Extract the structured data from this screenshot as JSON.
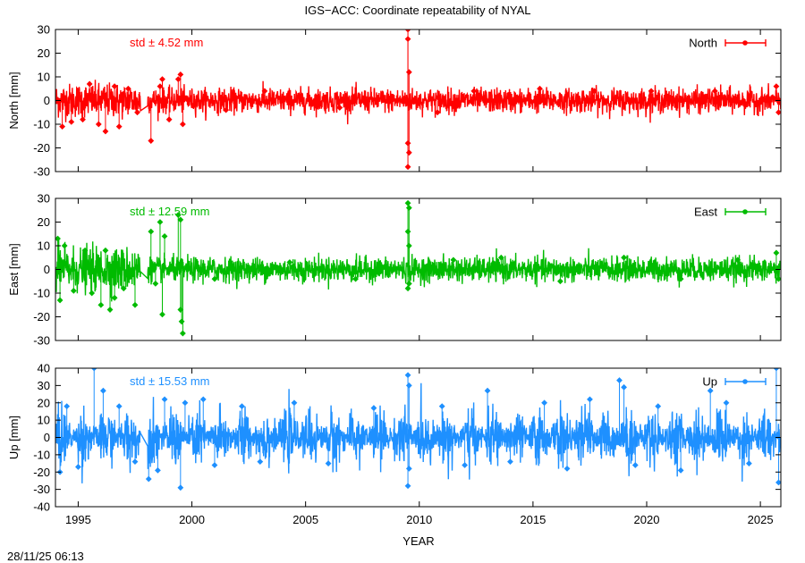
{
  "title": "IGS−ACC: Coordinate repeatability of NYAL",
  "timestamp": "28/11/25 06:13",
  "xlabel": "YEAR",
  "x_ticks": [
    1995,
    2000,
    2005,
    2010,
    2015,
    2020,
    2025
  ],
  "chart_data": [
    {
      "type": "scatter",
      "panel": "north",
      "ylabel": "North [mm]",
      "legend": "North",
      "legend_position": "top-right",
      "stat_label": "std ± 4.52 mm",
      "std": 4.52,
      "color": "#ff0000",
      "xlim": [
        1994.0,
        2025.9
      ],
      "ylim": [
        -30,
        30
      ],
      "y_ticks": [
        -30,
        -20,
        -10,
        0,
        10,
        20,
        30
      ],
      "grid": false,
      "baseline_noise": 2.5,
      "samples": [
        [
          1994.3,
          -11
        ],
        [
          1994.7,
          -9
        ],
        [
          1995.2,
          -8
        ],
        [
          1995.9,
          -10
        ],
        [
          1996.2,
          -13
        ],
        [
          1996.8,
          -11
        ],
        [
          1995.5,
          7
        ],
        [
          1996.6,
          6
        ],
        [
          1997.2,
          5
        ],
        [
          1997.6,
          -5
        ],
        [
          1998.2,
          -17
        ],
        [
          1998.6,
          6
        ],
        [
          1998.7,
          9
        ],
        [
          1999.0,
          -8
        ],
        [
          1999.4,
          9
        ],
        [
          1999.5,
          11
        ],
        [
          1999.6,
          -10
        ],
        [
          2001.5,
          -4
        ],
        [
          2003.2,
          4
        ],
        [
          2006.5,
          -3
        ],
        [
          2009.5,
          30
        ],
        [
          2009.5,
          26
        ],
        [
          2009.55,
          12
        ],
        [
          2009.5,
          -18
        ],
        [
          2009.55,
          -22
        ],
        [
          2009.5,
          -28
        ],
        [
          2010.8,
          -5
        ],
        [
          2012.4,
          4
        ],
        [
          2015.3,
          5
        ],
        [
          2017.7,
          4
        ],
        [
          2020.2,
          4
        ],
        [
          2023.0,
          4
        ],
        [
          2025.7,
          6
        ],
        [
          2025.8,
          -5
        ]
      ]
    },
    {
      "type": "scatter",
      "panel": "east",
      "ylabel": "East [mm]",
      "legend": "East",
      "legend_position": "top-right",
      "stat_label": "std ± 12.59 mm",
      "std": 12.59,
      "color": "#00bb00",
      "xlim": [
        1994.0,
        2025.9
      ],
      "ylim": [
        -30,
        30
      ],
      "y_ticks": [
        -30,
        -20,
        -10,
        0,
        10,
        20,
        30
      ],
      "grid": false,
      "baseline_noise": 2.5,
      "samples": [
        [
          1994.1,
          13
        ],
        [
          1994.2,
          -13
        ],
        [
          1994.4,
          10
        ],
        [
          1994.8,
          -9
        ],
        [
          1995.3,
          8
        ],
        [
          1995.6,
          -10
        ],
        [
          1996.0,
          -15
        ],
        [
          1996.2,
          8
        ],
        [
          1996.4,
          -17
        ],
        [
          1996.6,
          -12
        ],
        [
          1997.0,
          -8
        ],
        [
          1997.5,
          -15
        ],
        [
          1998.2,
          16
        ],
        [
          1998.4,
          -6
        ],
        [
          1998.6,
          20
        ],
        [
          1998.7,
          -19
        ],
        [
          1998.8,
          14
        ],
        [
          1999.4,
          23
        ],
        [
          1999.5,
          21
        ],
        [
          1999.5,
          -17
        ],
        [
          1999.55,
          -22
        ],
        [
          1999.6,
          -27
        ],
        [
          2001.0,
          -4
        ],
        [
          2004.3,
          3
        ],
        [
          2007.2,
          -4
        ],
        [
          2009.5,
          28
        ],
        [
          2009.55,
          26
        ],
        [
          2009.5,
          16
        ],
        [
          2009.55,
          10
        ],
        [
          2009.5,
          -8
        ],
        [
          2009.55,
          -6
        ],
        [
          2011.5,
          4
        ],
        [
          2013.6,
          5
        ],
        [
          2016.2,
          -5
        ],
        [
          2019.0,
          5
        ],
        [
          2021.5,
          -4
        ],
        [
          2024.0,
          4
        ],
        [
          2025.7,
          7
        ],
        [
          2025.8,
          -4
        ]
      ]
    },
    {
      "type": "scatter",
      "panel": "up",
      "ylabel": "Up [mm]",
      "legend": "Up",
      "legend_position": "top-right",
      "stat_label": "std ± 15.53 mm",
      "std": 15.53,
      "color": "#1e90ff",
      "xlim": [
        1994.0,
        2025.9
      ],
      "ylim": [
        -40,
        40
      ],
      "y_ticks": [
        -40,
        -30,
        -20,
        -10,
        0,
        10,
        20,
        30,
        40
      ],
      "grid": false,
      "baseline_noise": 8,
      "samples": [
        [
          1994.2,
          -20
        ],
        [
          1994.5,
          18
        ],
        [
          1995.0,
          -17
        ],
        [
          1995.7,
          40
        ],
        [
          1996.1,
          27
        ],
        [
          1996.8,
          18
        ],
        [
          1997.5,
          -14
        ],
        [
          1998.1,
          -24
        ],
        [
          1998.5,
          -19
        ],
        [
          1998.8,
          22
        ],
        [
          1999.5,
          -29
        ],
        [
          1999.7,
          20
        ],
        [
          2000.5,
          22
        ],
        [
          2001.0,
          -16
        ],
        [
          2002.2,
          18
        ],
        [
          2003.0,
          -14
        ],
        [
          2004.5,
          20
        ],
        [
          2006.0,
          -15
        ],
        [
          2008.0,
          17
        ],
        [
          2009.5,
          36
        ],
        [
          2009.55,
          30
        ],
        [
          2009.5,
          -28
        ],
        [
          2009.55,
          -18
        ],
        [
          2011.0,
          18
        ],
        [
          2012.0,
          -16
        ],
        [
          2013.0,
          27
        ],
        [
          2014.0,
          -14
        ],
        [
          2015.5,
          20
        ],
        [
          2016.5,
          -18
        ],
        [
          2017.5,
          22
        ],
        [
          2018.8,
          33
        ],
        [
          2019.0,
          29
        ],
        [
          2019.5,
          -16
        ],
        [
          2020.5,
          18
        ],
        [
          2021.5,
          -19
        ],
        [
          2022.8,
          27
        ],
        [
          2023.5,
          20
        ],
        [
          2024.5,
          -15
        ],
        [
          2025.7,
          40
        ],
        [
          2025.8,
          -26
        ]
      ]
    }
  ]
}
